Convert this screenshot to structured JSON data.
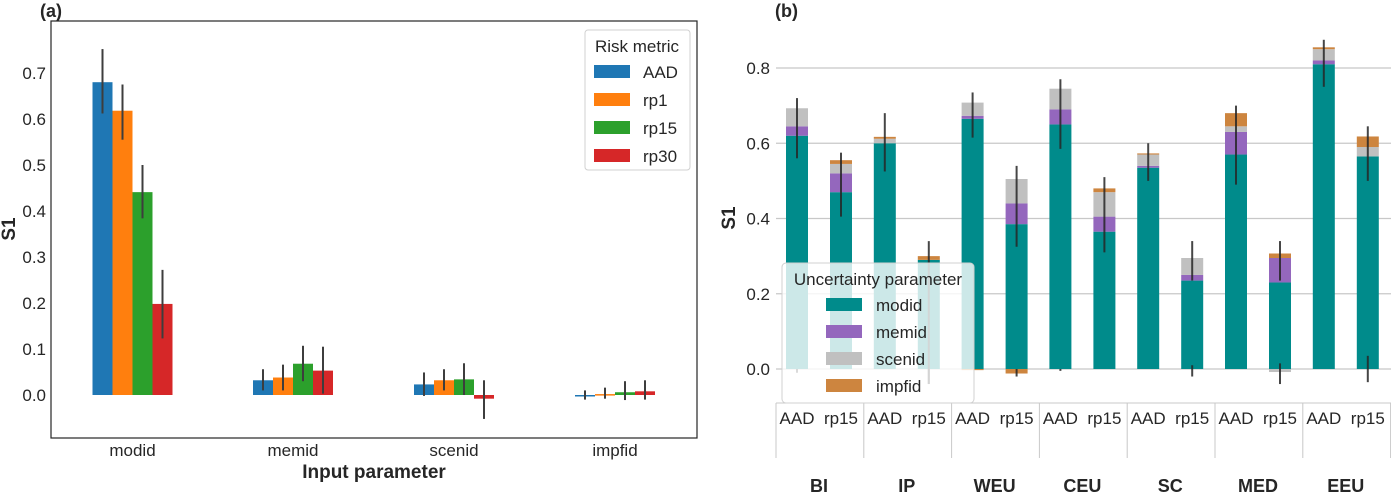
{
  "chart_data": [
    {
      "panel_label": "(a)",
      "type": "bar",
      "xlabel": "Input parameter",
      "ylabel": "S1",
      "ylim": [
        -0.1,
        0.78
      ],
      "yticks": [
        "0.0",
        "0.1",
        "0.2",
        "0.3",
        "0.4",
        "0.5",
        "0.6",
        "0.7"
      ],
      "ytick_values": [
        0.0,
        0.1,
        0.2,
        0.3,
        0.4,
        0.5,
        0.6,
        0.7
      ],
      "grid": false,
      "categories": [
        "modid",
        "memid",
        "scenid",
        "impfid"
      ],
      "legend": {
        "title": "Risk metric",
        "placement": "top-right"
      },
      "series": [
        {
          "name": "AAD",
          "color": "#1f77b4",
          "values": [
            0.68,
            0.032,
            0.023,
            -0.002
          ],
          "err_low": [
            0.612,
            0.01,
            -0.002,
            -0.01
          ],
          "err_high": [
            0.752,
            0.056,
            0.049,
            0.01
          ]
        },
        {
          "name": "rp1",
          "color": "#ff7f0e",
          "values": [
            0.618,
            0.038,
            0.032,
            0.002
          ],
          "err_low": [
            0.555,
            0.01,
            0.01,
            -0.008
          ],
          "err_high": [
            0.675,
            0.066,
            0.056,
            0.016
          ]
        },
        {
          "name": "rp15",
          "color": "#2ca02c",
          "values": [
            0.441,
            0.068,
            0.034,
            0.006
          ],
          "err_low": [
            0.384,
            0.03,
            0.0,
            -0.011
          ],
          "err_high": [
            0.5,
            0.107,
            0.069,
            0.03
          ]
        },
        {
          "name": "rp30",
          "color": "#d62728",
          "values": [
            0.198,
            0.053,
            -0.008,
            0.008
          ],
          "err_low": [
            0.123,
            0.003,
            -0.052,
            -0.01
          ],
          "err_high": [
            0.272,
            0.105,
            0.032,
            0.032
          ]
        }
      ]
    },
    {
      "panel_label": "(b)",
      "type": "bar",
      "stacked": true,
      "ylabel": "S1",
      "ylim": [
        -0.09,
        0.88
      ],
      "yticks": [
        "0.0",
        "0.2",
        "0.4",
        "0.6",
        "0.8"
      ],
      "ytick_values": [
        0.0,
        0.2,
        0.4,
        0.6,
        0.8
      ],
      "grid": true,
      "groups": [
        "BI",
        "IP",
        "WEU",
        "CEU",
        "SC",
        "MED",
        "EEU"
      ],
      "subcategories": [
        "AAD",
        "rp15"
      ],
      "legend": {
        "title": "Uncertainty parameter",
        "placement": "lower-left"
      },
      "series": [
        {
          "name": "modid",
          "color": "#008b8b",
          "values": [
            0.62,
            0.47,
            0.6,
            0.29,
            0.665,
            0.385,
            0.65,
            0.365,
            0.535,
            0.235,
            0.57,
            0.23,
            0.81,
            0.565
          ]
        },
        {
          "name": "memid",
          "color": "#9467bd",
          "values": [
            0.025,
            0.05,
            0.0,
            0.0,
            0.008,
            0.055,
            0.04,
            0.04,
            0.005,
            0.015,
            0.06,
            0.065,
            0.01,
            0.0
          ]
        },
        {
          "name": "scenid",
          "color": "#c0c0c0",
          "values": [
            0.048,
            0.025,
            0.012,
            0.0,
            0.035,
            0.065,
            0.055,
            0.065,
            0.03,
            0.045,
            0.015,
            -0.008,
            0.03,
            0.025
          ]
        },
        {
          "name": "impfid",
          "color": "#cd853f",
          "values": [
            0.0,
            0.01,
            0.005,
            0.01,
            -0.003,
            -0.012,
            0.0,
            0.01,
            0.003,
            0.0,
            0.035,
            0.012,
            0.005,
            0.028
          ]
        }
      ],
      "error_bars": [
        {
          "low": 0.56,
          "high": 0.72
        },
        {
          "low": 0.405,
          "high": 0.575
        },
        {
          "low": 0.525,
          "high": 0.68
        },
        {
          "low": -0.04,
          "high": 0.34
        },
        {
          "low": 0.615,
          "high": 0.735
        },
        {
          "low": 0.325,
          "high": 0.54
        },
        {
          "low": 0.585,
          "high": 0.77
        },
        {
          "low": 0.31,
          "high": 0.51
        },
        {
          "low": 0.5,
          "high": 0.6
        },
        {
          "low": 0.235,
          "high": 0.34
        },
        {
          "low": 0.49,
          "high": 0.7
        },
        {
          "low": 0.235,
          "high": 0.34
        },
        {
          "low": 0.75,
          "high": 0.875
        },
        {
          "low": 0.5,
          "high": 0.645
        }
      ],
      "lower_error_bars": [
        {
          "low": -0.01,
          "high": 0.0
        },
        null,
        null,
        {
          "low": -0.04,
          "high": 0.0
        },
        null,
        {
          "low": -0.02,
          "high": 0.0
        },
        {
          "low": -0.005,
          "high": 0.0
        },
        null,
        null,
        {
          "low": -0.02,
          "high": 0.01
        },
        null,
        {
          "low": -0.04,
          "high": 0.015
        },
        null,
        {
          "low": -0.035,
          "high": 0.035
        }
      ]
    }
  ]
}
